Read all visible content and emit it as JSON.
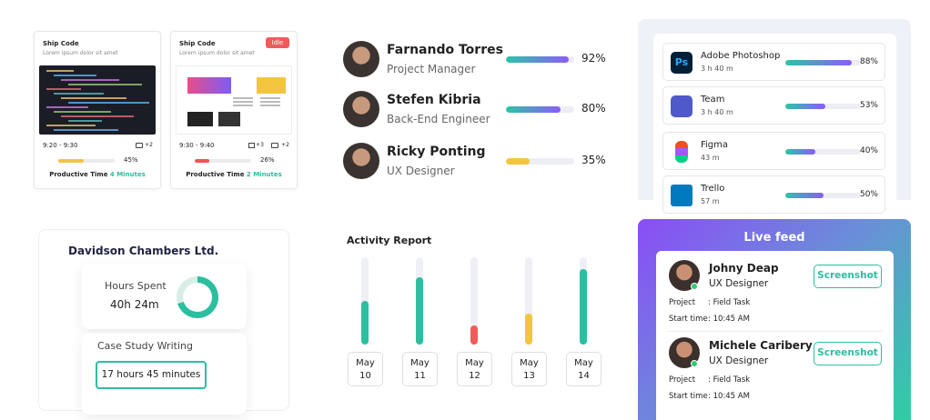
{
  "ship_cards": [
    {
      "title": "Ship Code",
      "subtitle": "Lorem ipsum dolor sit amet",
      "time": "9:20 - 9:30",
      "count": "+2",
      "progress": {
        "value": 45,
        "label": "45%"
      },
      "color": "#f5c242",
      "productive_label": "Productive Time",
      "productive_value": "4 Minutes"
    },
    {
      "title": "Ship Code",
      "badge": "Idle",
      "subtitle": "Lorem ipsum dolor sit amet",
      "time": "9:30 - 9:40",
      "screens": "+3",
      "count": "+2",
      "progress": {
        "value": 26,
        "label": "26%"
      },
      "color": "#f05454",
      "productive_label": "Productive Time",
      "productive_value": "2 Minutes"
    }
  ],
  "people": [
    {
      "name": "Farnando Torres",
      "role": "Project Manager",
      "progress": {
        "value": 92,
        "label": "92%"
      },
      "color": "gradient"
    },
    {
      "name": "Stefen Kibria",
      "role": "Back-End Engineer",
      "progress": {
        "value": 80,
        "label": "80%"
      },
      "color": "gradient"
    },
    {
      "name": "Ricky Ponting",
      "role": "UX Designer",
      "progress": {
        "value": 35,
        "label": "35%"
      },
      "color": "#f3c53f"
    }
  ],
  "apps": [
    {
      "name": "Adobe Photoshop",
      "icon": "Ps",
      "time": "3 h 40 m",
      "usage": {
        "value": 88,
        "label": "88%"
      }
    },
    {
      "name": "Team",
      "time": "3 h 40 m",
      "usage": {
        "value": 53,
        "label": "53%"
      }
    },
    {
      "name": "Figma",
      "time": "43 m",
      "usage": {
        "value": 40,
        "label": "40%"
      }
    },
    {
      "name": "Trello",
      "time": "57 m",
      "usage": {
        "value": 50,
        "label": "50%"
      }
    }
  ],
  "client": {
    "title": "Davidson Chambers Ltd.",
    "hours_label": "Hours Spent",
    "hours_value": "40h 24m",
    "progress": 70,
    "task": "Case Study Writing",
    "task_time": "17 hours 45 minutes"
  },
  "activity": {
    "title": "Activity Report",
    "max": 100,
    "days": [
      {
        "month": "May",
        "day": "10",
        "value": 50,
        "color": "#2bbfa0"
      },
      {
        "month": "May",
        "day": "11",
        "value": 77,
        "color": "#2bbfa0"
      },
      {
        "month": "May",
        "day": "12",
        "value": 22,
        "color": "#f25a5a"
      },
      {
        "month": "May",
        "day": "13",
        "value": 35,
        "color": "#f3c53f"
      },
      {
        "month": "May",
        "day": "14",
        "value": 86,
        "color": "#2bbfa0"
      }
    ]
  },
  "live_feed": {
    "title": "Live feed",
    "entries": [
      {
        "name": "Johny Deap",
        "role": "UX Designer",
        "button": "Screenshot",
        "project_label": "Project",
        "project": ": Field Task",
        "start_label": "Start time",
        "start": ": 10:45 AM"
      },
      {
        "name": "Michele Caribery",
        "role": "UX Designer",
        "button": "Screenshot",
        "project_label": "Project",
        "project": ": Field Task",
        "start_label": "Start time",
        "start": ": 10:45 AM"
      }
    ]
  }
}
